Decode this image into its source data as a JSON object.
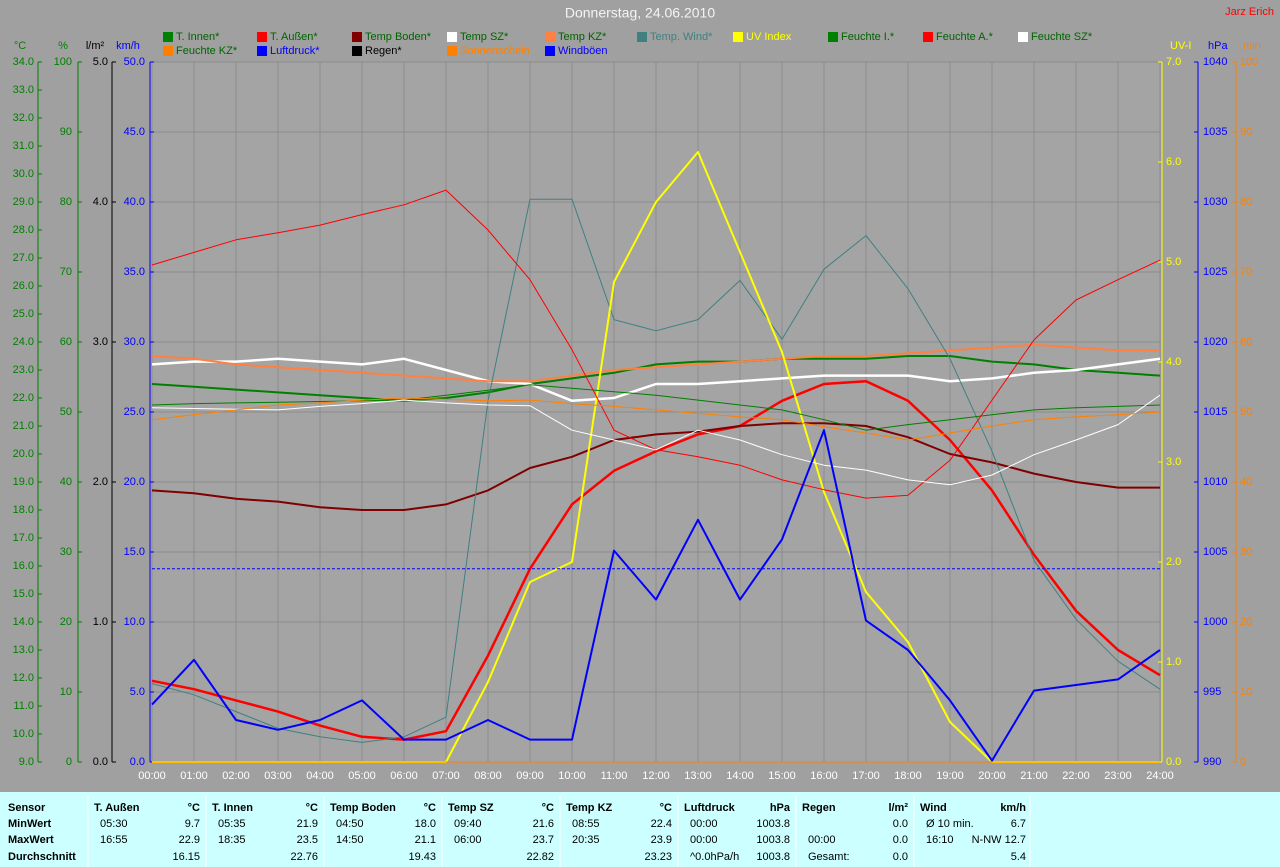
{
  "chart_data": {
    "type": "line",
    "title": "Donnerstag, 24.06.2010",
    "author": "Jarz Erich",
    "grid": true,
    "categories": [
      "00:00",
      "01:00",
      "02:00",
      "03:00",
      "04:00",
      "05:00",
      "06:00",
      "07:00",
      "08:00",
      "09:00",
      "10:00",
      "11:00",
      "12:00",
      "13:00",
      "14:00",
      "15:00",
      "16:00",
      "17:00",
      "18:00",
      "19:00",
      "20:00",
      "21:00",
      "22:00",
      "23:00",
      "24:00"
    ],
    "axes": [
      {
        "unit": "°C",
        "side": "left",
        "color": "#008000",
        "lim": [
          9,
          34
        ],
        "ticks": [
          {
            "value": 9,
            "label": "9.0"
          },
          {
            "value": 10,
            "label": "10.0"
          },
          {
            "value": 11,
            "label": "11.0"
          },
          {
            "value": 12,
            "label": "12.0"
          },
          {
            "value": 13,
            "label": "13.0"
          },
          {
            "value": 14,
            "label": "14.0"
          },
          {
            "value": 15,
            "label": "15.0"
          },
          {
            "value": 16,
            "label": "16.0"
          },
          {
            "value": 17,
            "label": "17.0"
          },
          {
            "value": 18,
            "label": "18.0"
          },
          {
            "value": 19,
            "label": "19.0"
          },
          {
            "value": 20,
            "label": "20.0"
          },
          {
            "value": 21,
            "label": "21.0"
          },
          {
            "value": 22,
            "label": "22.0"
          },
          {
            "value": 23,
            "label": "23.0"
          },
          {
            "value": 24,
            "label": "24.0"
          },
          {
            "value": 25,
            "label": "25.0"
          },
          {
            "value": 26,
            "label": "26.0"
          },
          {
            "value": 27,
            "label": "27.0"
          },
          {
            "value": 28,
            "label": "28.0"
          },
          {
            "value": 29,
            "label": "29.0"
          },
          {
            "value": 30,
            "label": "30.0"
          },
          {
            "value": 31,
            "label": "31.0"
          },
          {
            "value": 32,
            "label": "32.0"
          },
          {
            "value": 33,
            "label": "33.0"
          },
          {
            "value": 34,
            "label": "34.0"
          }
        ]
      },
      {
        "unit": "%",
        "side": "left",
        "color": "#008000",
        "grid": true,
        "lim": [
          0,
          100
        ],
        "ticks": [
          0,
          10,
          20,
          30,
          40,
          50,
          60,
          70,
          80,
          90,
          100
        ]
      },
      {
        "unit": "l/m²",
        "side": "left",
        "color": "#000000",
        "lim": [
          0,
          5
        ],
        "ticks": [
          {
            "value": 0,
            "label": "0.0"
          },
          {
            "value": 1,
            "label": "1.0"
          },
          {
            "value": 2,
            "label": "2.0"
          },
          {
            "value": 3,
            "label": "3.0"
          },
          {
            "value": 4,
            "label": "4.0"
          },
          {
            "value": 5,
            "label": "5.0"
          }
        ]
      },
      {
        "unit": "km/h",
        "side": "left",
        "color": "#0000ff",
        "lim": [
          0,
          50
        ],
        "ticks": [
          {
            "value": 0,
            "label": "0.0"
          },
          {
            "value": 5,
            "label": "5.0"
          },
          {
            "value": 10,
            "label": "10.0"
          },
          {
            "value": 15,
            "label": "15.0"
          },
          {
            "value": 20,
            "label": "20.0"
          },
          {
            "value": 25,
            "label": "25.0"
          },
          {
            "value": 30,
            "label": "30.0"
          },
          {
            "value": 35,
            "label": "35.0"
          },
          {
            "value": 40,
            "label": "40.0"
          },
          {
            "value": 45,
            "label": "45.0"
          },
          {
            "value": 50,
            "label": "50.0"
          }
        ]
      },
      {
        "unit": "UV-I",
        "side": "right",
        "color": "#ffff00",
        "lim": [
          0,
          7
        ],
        "ticks": [
          {
            "value": 0,
            "label": "0.0"
          },
          {
            "value": 1,
            "label": "1.0"
          },
          {
            "value": 2,
            "label": "2.0"
          },
          {
            "value": 3,
            "label": "3.0"
          },
          {
            "value": 4,
            "label": "4.0"
          },
          {
            "value": 5,
            "label": "5.0"
          },
          {
            "value": 6,
            "label": "6.0"
          },
          {
            "value": 7,
            "label": "7.0"
          }
        ]
      },
      {
        "unit": "hPa",
        "side": "right",
        "color": "#0000ff",
        "lim": [
          990,
          1040
        ],
        "ticks": [
          990,
          995,
          1000,
          1005,
          1010,
          1015,
          1020,
          1025,
          1030,
          1035,
          1040
        ]
      },
      {
        "unit": "min",
        "side": "right",
        "color": "#ff8000",
        "lim": [
          0,
          100
        ],
        "ticks": [
          0,
          10,
          20,
          30,
          40,
          50,
          60,
          70,
          80,
          90,
          100
        ]
      }
    ],
    "series": [
      {
        "name": "T. Innen*",
        "color": "#008000",
        "label_color": "#006400",
        "axis": "°C",
        "values": [
          22.5,
          22.4,
          22.3,
          22.2,
          22.1,
          22.0,
          21.9,
          22.0,
          22.2,
          22.5,
          22.7,
          22.9,
          23.2,
          23.3,
          23.3,
          23.4,
          23.4,
          23.4,
          23.5,
          23.5,
          23.3,
          23.2,
          23.0,
          22.9,
          22.8
        ]
      },
      {
        "name": "T. Außen*",
        "color": "#ff0000",
        "label_color": "#006400",
        "axis": "°C",
        "values": [
          11.9,
          11.6,
          11.2,
          10.8,
          10.3,
          9.9,
          9.8,
          10.1,
          12.8,
          15.9,
          18.2,
          19.4,
          20.1,
          20.7,
          21.0,
          21.9,
          22.5,
          22.6,
          21.9,
          20.5,
          18.7,
          16.4,
          14.4,
          13.0,
          12.1
        ]
      },
      {
        "name": "Temp Boden*",
        "color": "#800000",
        "label_color": "#006400",
        "axis": "°C",
        "values": [
          18.7,
          18.6,
          18.4,
          18.3,
          18.1,
          18.0,
          18.0,
          18.2,
          18.7,
          19.5,
          19.9,
          20.5,
          20.7,
          20.8,
          21.0,
          21.1,
          21.1,
          21.0,
          20.6,
          20.0,
          19.7,
          19.3,
          19.0,
          18.8,
          18.8
        ]
      },
      {
        "name": "Temp SZ*",
        "color": "#ffffff",
        "label_color": "#006400",
        "axis": "°C",
        "values": [
          23.2,
          23.3,
          23.3,
          23.4,
          23.3,
          23.2,
          23.4,
          23.0,
          22.6,
          22.5,
          21.9,
          22.0,
          22.5,
          22.5,
          22.6,
          22.7,
          22.8,
          22.8,
          22.8,
          22.6,
          22.7,
          22.9,
          23.0,
          23.2,
          23.4
        ]
      },
      {
        "name": "Temp KZ*",
        "color": "#ff8040",
        "label_color": "#006400",
        "axis": "°C",
        "values": [
          23.5,
          23.4,
          23.2,
          23.1,
          23.0,
          22.9,
          22.8,
          22.7,
          22.6,
          22.6,
          22.8,
          23.0,
          23.1,
          23.2,
          23.3,
          23.4,
          23.5,
          23.5,
          23.6,
          23.7,
          23.8,
          23.9,
          23.8,
          23.7,
          23.7
        ]
      },
      {
        "name": "Temp. Wind*",
        "color": "#408080",
        "label_color": "#408080",
        "axis": "°C",
        "values": [
          11.8,
          11.4,
          10.8,
          10.2,
          9.9,
          9.7,
          9.9,
          10.6,
          21.9,
          29.1,
          29.1,
          24.8,
          24.4,
          24.8,
          26.2,
          24.1,
          26.6,
          27.8,
          25.9,
          23.4,
          20.1,
          16.2,
          14.1,
          12.6,
          11.6
        ]
      },
      {
        "name": "UV Index",
        "color": "#ffff00",
        "label_color": "#ffff00",
        "axis": "UV-I",
        "values": [
          0,
          0,
          0,
          0,
          0,
          0,
          0,
          0,
          0.8,
          1.8,
          2.0,
          4.8,
          5.6,
          6.1,
          5.1,
          4.1,
          2.7,
          1.7,
          1.2,
          0.4,
          0,
          0,
          0,
          0,
          0
        ]
      },
      {
        "name": "Feuchte I.*",
        "color": "#008000",
        "label_color": "#006400",
        "axis": "%",
        "values": [
          51.0,
          51.2,
          51.3,
          51.4,
          51.5,
          51.6,
          51.7,
          52.4,
          53.1,
          53.9,
          53.4,
          52.9,
          52.4,
          51.7,
          51.0,
          50.3,
          48.9,
          47.4,
          48.2,
          48.9,
          49.6,
          50.3,
          50.6,
          50.8,
          51.0
        ]
      },
      {
        "name": "Feuchte A.*",
        "color": "#ff0000",
        "label_color": "#006400",
        "axis": "%",
        "values": [
          71.0,
          72.8,
          74.6,
          75.6,
          76.7,
          78.2,
          79.6,
          81.7,
          76.0,
          68.9,
          58.9,
          47.4,
          44.6,
          43.6,
          42.4,
          40.3,
          38.9,
          37.7,
          38.1,
          43.1,
          51.7,
          60.3,
          66.0,
          68.9,
          71.7
        ]
      },
      {
        "name": "Feuchte SZ*",
        "color": "#ffffff",
        "label_color": "#006400",
        "axis": "%",
        "values": [
          50.6,
          50.5,
          50.4,
          50.3,
          50.8,
          51.2,
          51.7,
          51.3,
          51.0,
          50.9,
          47.4,
          46.0,
          44.6,
          47.4,
          46.0,
          43.9,
          42.4,
          41.7,
          40.3,
          39.6,
          41.0,
          43.9,
          46.0,
          48.2,
          52.4
        ]
      },
      {
        "name": "Feuchte KZ*",
        "color": "#ff8000",
        "label_color": "#006400",
        "axis": "%",
        "values": [
          48.9,
          49.6,
          50.3,
          51.0,
          51.3,
          51.7,
          52.0,
          51.8,
          51.6,
          51.7,
          51.2,
          50.8,
          50.3,
          49.8,
          49.3,
          48.9,
          47.9,
          47.0,
          46.0,
          47.0,
          48.0,
          48.9,
          49.3,
          49.6,
          50.0
        ]
      },
      {
        "name": "Luftdruck*",
        "color": "#0000ff",
        "label_color": "#0000ff",
        "axis": "hPa",
        "values": [
          1003.8,
          1003.8,
          1003.8,
          1003.8,
          1003.8,
          1003.8,
          1003.8,
          1003.8,
          1003.8,
          1003.8,
          1003.8,
          1003.8,
          1003.8,
          1003.8,
          1003.8,
          1003.8,
          1003.8,
          1003.8,
          1003.8,
          1003.8,
          1003.8,
          1003.8,
          1003.8,
          1003.8,
          1003.8
        ]
      },
      {
        "name": "Regen*",
        "color": "#000000",
        "label_color": "#000000",
        "axis": "l/m²",
        "values": [
          0,
          0,
          0,
          0,
          0,
          0,
          0,
          0,
          0,
          0,
          0,
          0,
          0,
          0,
          0,
          0,
          0,
          0,
          0,
          0,
          0,
          0,
          0,
          0,
          0
        ]
      },
      {
        "name": "Sonnenschein",
        "color": "#ff8000",
        "label_color": "#ff8000",
        "axis": "min",
        "values": [
          0,
          0,
          0,
          0,
          0,
          0,
          0,
          0,
          0,
          0,
          0,
          0,
          0,
          0,
          0,
          0,
          0,
          0,
          0,
          0,
          0,
          0,
          0,
          0,
          0
        ]
      },
      {
        "name": "Windböen",
        "color": "#0000ff",
        "label_color": "#0000ff",
        "axis": "km/h",
        "values": [
          4.1,
          7.3,
          3.0,
          2.3,
          3.0,
          4.4,
          1.6,
          1.6,
          3.0,
          1.6,
          1.6,
          15.1,
          11.6,
          17.3,
          11.6,
          15.9,
          23.7,
          10.1,
          8.0,
          4.4,
          0.1,
          5.1,
          5.5,
          5.9,
          8.0
        ]
      }
    ]
  },
  "stats": {
    "labels": [
      "Sensor",
      "MinWert",
      "MaxWert",
      "Durchschnitt"
    ],
    "groups": [
      {
        "name": "T. Außen",
        "unit": "°C",
        "rows": [
          [
            "05:30",
            "9.7"
          ],
          [
            "16:55",
            "22.9"
          ],
          [
            null,
            "16.15"
          ]
        ]
      },
      {
        "name": "T. Innen",
        "unit": "°C",
        "rows": [
          [
            "05:35",
            "21.9"
          ],
          [
            "18:35",
            "23.5"
          ],
          [
            null,
            "22.76"
          ]
        ]
      },
      {
        "name": "Temp Boden",
        "unit": "°C",
        "rows": [
          [
            "04:50",
            "18.0"
          ],
          [
            "14:50",
            "21.1"
          ],
          [
            null,
            "19.43"
          ]
        ]
      },
      {
        "name": "Temp SZ",
        "unit": "°C",
        "rows": [
          [
            "09:40",
            "21.6"
          ],
          [
            "06:00",
            "23.7"
          ],
          [
            null,
            "22.82"
          ]
        ]
      },
      {
        "name": "Temp KZ",
        "unit": "°C",
        "rows": [
          [
            "08:55",
            "22.4"
          ],
          [
            "20:35",
            "23.9"
          ],
          [
            null,
            "23.23"
          ]
        ]
      },
      {
        "name": "Luftdruck",
        "unit": "hPa",
        "rows": [
          [
            "00:00",
            "1003.8"
          ],
          [
            "00:00",
            "1003.8"
          ],
          [
            "^0.0hPa/h",
            "1003.8"
          ]
        ]
      },
      {
        "name": "Regen",
        "unit": "l/m²",
        "rows": [
          [
            null,
            "0.0"
          ],
          [
            "00:00",
            "0.0"
          ],
          [
            "Gesamt:",
            "0.0"
          ]
        ]
      },
      {
        "name": "Wind",
        "unit": "km/h",
        "rows": [
          [
            "Ø 10 min.",
            "6.7"
          ],
          [
            "16:10",
            "N-NW 12.7"
          ],
          [
            null,
            "5.4"
          ]
        ]
      }
    ]
  }
}
